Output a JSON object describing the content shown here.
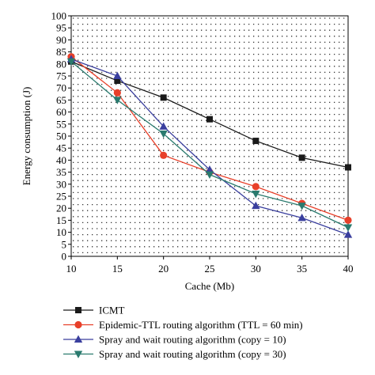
{
  "chart_data": {
    "type": "line",
    "xlabel": "Cache (Mb)",
    "ylabel": "Energy consumption (J)",
    "x": [
      10,
      15,
      20,
      25,
      30,
      35,
      40
    ],
    "xlim": [
      10,
      40
    ],
    "ylim": [
      0,
      100
    ],
    "xticks": [
      "10",
      "15",
      "20",
      "25",
      "30",
      "35",
      "40"
    ],
    "yticks": [
      "0",
      "5",
      "10",
      "15",
      "20",
      "25",
      "30",
      "35",
      "40",
      "45",
      "50",
      "55",
      "60",
      "65",
      "70",
      "75",
      "80",
      "85",
      "90",
      "95",
      "100"
    ],
    "grid": "dotted",
    "legend_position": "below",
    "series": [
      {
        "name": "ICMT",
        "color": "#1a1a1a",
        "marker": "square",
        "values": [
          81,
          73,
          66,
          57,
          48,
          41,
          37
        ]
      },
      {
        "name": "Epidemic-TTL routing algorithm (TTL = 60 min)",
        "color": "#e8402a",
        "marker": "circle",
        "values": [
          83,
          68,
          42,
          35,
          29,
          22,
          15
        ]
      },
      {
        "name": "Spray and wait routing algorithm (copy = 10)",
        "color": "#3a3f9e",
        "marker": "triangle-up",
        "values": [
          82,
          75,
          54,
          36,
          21,
          16,
          9
        ]
      },
      {
        "name": "Spray and wait routing algorithm (copy = 30)",
        "color": "#2a7a6e",
        "marker": "triangle-down",
        "values": [
          81,
          65,
          51,
          34,
          26,
          21,
          12
        ]
      }
    ]
  }
}
